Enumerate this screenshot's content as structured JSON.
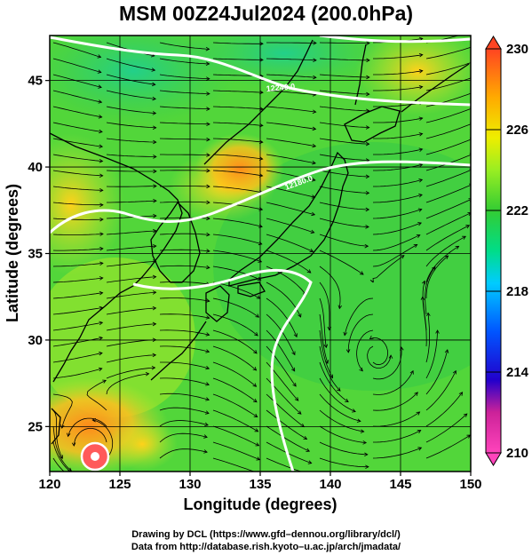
{
  "title": "MSM 00Z24Jul2024 (200.0hPa)",
  "x_axis": {
    "label": "Longitude (degrees)",
    "ticks": [
      120,
      125,
      130,
      135,
      140,
      145,
      150
    ],
    "range": [
      120,
      150
    ]
  },
  "y_axis": {
    "label": "Latitude  (degrees)",
    "ticks": [
      25,
      30,
      35,
      40,
      45
    ],
    "range": [
      22.4,
      47.6
    ]
  },
  "colorbar": {
    "ticks": [
      210,
      214,
      218,
      222,
      226,
      230
    ],
    "range": [
      210,
      230
    ],
    "colors": [
      "#ff44bb",
      "#2200cc",
      "#0055ff",
      "#00ccff",
      "#00dd88",
      "#33cc33",
      "#99ee22",
      "#eeee00",
      "#ffaa00",
      "#ff4422"
    ]
  },
  "contours": [
    {
      "label": "12240.0"
    },
    {
      "label": "12180.0"
    }
  ],
  "credits": [
    "Drawing by DCL (https://www.gfd–dennou.org/library/dcl/)",
    "Data from http://database.rish.kyoto–u.ac.jp/arch/jmadata/"
  ]
}
